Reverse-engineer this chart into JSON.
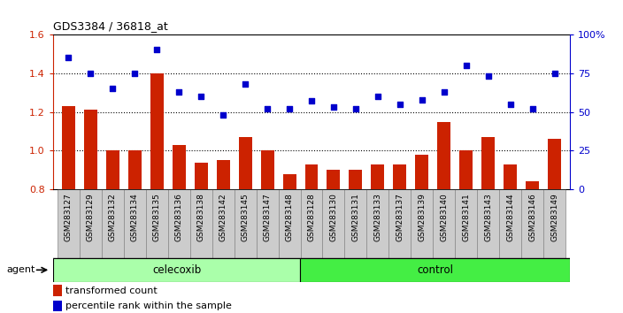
{
  "title": "GDS3384 / 36818_at",
  "samples": [
    "GSM283127",
    "GSM283129",
    "GSM283132",
    "GSM283134",
    "GSM283135",
    "GSM283136",
    "GSM283138",
    "GSM283142",
    "GSM283145",
    "GSM283147",
    "GSM283148",
    "GSM283128",
    "GSM283130",
    "GSM283131",
    "GSM283133",
    "GSM283137",
    "GSM283139",
    "GSM283140",
    "GSM283141",
    "GSM283143",
    "GSM283144",
    "GSM283146",
    "GSM283149"
  ],
  "transformed_count": [
    1.23,
    1.21,
    1.0,
    1.0,
    1.4,
    1.03,
    0.94,
    0.95,
    1.07,
    1.0,
    0.88,
    0.93,
    0.9,
    0.9,
    0.93,
    0.93,
    0.98,
    1.15,
    1.0,
    1.07,
    0.93,
    0.84,
    1.06
  ],
  "percentile_rank": [
    85,
    75,
    65,
    75,
    90,
    63,
    60,
    48,
    68,
    52,
    52,
    57,
    53,
    52,
    60,
    55,
    58,
    63,
    80,
    73,
    55,
    52,
    75
  ],
  "celecoxib_count": 11,
  "control_count": 12,
  "bar_color": "#cc2200",
  "dot_color": "#0000cc",
  "ylim_left": [
    0.8,
    1.6
  ],
  "ylim_right": [
    0,
    100
  ],
  "yticks_left": [
    0.8,
    1.0,
    1.2,
    1.4,
    1.6
  ],
  "yticks_right": [
    0,
    25,
    50,
    75,
    100
  ],
  "celecoxib_color": "#aaffaa",
  "control_color": "#44ee44",
  "agent_label": "agent",
  "legend1": "transformed count",
  "legend2": "percentile rank within the sample",
  "background_color": "#ffffff",
  "tickbox_color": "#cccccc",
  "tickbox_edge": "#888888"
}
